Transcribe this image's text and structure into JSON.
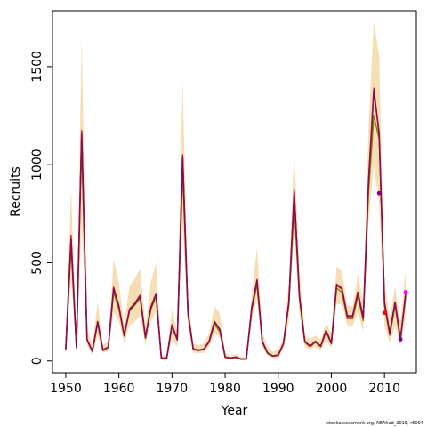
{
  "chart_data": {
    "type": "line",
    "title": "",
    "xlabel": "Year",
    "ylabel": "Recruits",
    "xlim": [
      1947.5,
      2016
    ],
    "ylim": [
      -60,
      1785
    ],
    "xticks": [
      1950,
      1960,
      1970,
      1980,
      1990,
      2000,
      2010
    ],
    "yticks": [
      0,
      500,
      1000,
      1500
    ],
    "credit": "stockassessment.org, NEAhad_2015, r5094",
    "colors": {
      "band": "#f5deb3",
      "line_dark": "#8b0a50",
      "line_red": "#dc143c",
      "line_olive": "#808000",
      "point_purple": "#800080",
      "point_red": "#ff0000",
      "point_magenta": "#ff00ff"
    },
    "x": [
      1950,
      1951,
      1952,
      1953,
      1954,
      1955,
      1956,
      1957,
      1958,
      1959,
      1960,
      1961,
      1962,
      1963,
      1964,
      1965,
      1966,
      1967,
      1968,
      1969,
      1970,
      1971,
      1972,
      1973,
      1974,
      1975,
      1976,
      1977,
      1978,
      1979,
      1980,
      1981,
      1982,
      1983,
      1984,
      1985,
      1986,
      1987,
      1988,
      1989,
      1990,
      1991,
      1992,
      1993,
      1994,
      1995,
      1996,
      1997,
      1998,
      1999,
      2000,
      2001,
      2002,
      2003,
      2004,
      2005,
      2006,
      2007,
      2008,
      2009,
      2010,
      2011,
      2012,
      2013,
      2014
    ],
    "band_upper": [
      100,
      880,
      120,
      1650,
      160,
      80,
      300,
      80,
      100,
      520,
      400,
      190,
      380,
      420,
      470,
      180,
      400,
      500,
      30,
      30,
      260,
      150,
      1430,
      320,
      90,
      80,
      90,
      140,
      280,
      240,
      40,
      25,
      35,
      20,
      20,
      330,
      580,
      150,
      70,
      45,
      55,
      120,
      400,
      1070,
      480,
      130,
      110,
      130,
      110,
      190,
      140,
      480,
      460,
      280,
      280,
      440,
      300,
      1200,
      1730,
      1550,
      400,
      220,
      380,
      200,
      460
    ],
    "band_lower": [
      40,
      420,
      40,
      700,
      80,
      30,
      130,
      40,
      50,
      250,
      200,
      90,
      180,
      200,
      230,
      80,
      200,
      250,
      5,
      5,
      110,
      70,
      700,
      180,
      40,
      40,
      40,
      70,
      140,
      120,
      10,
      5,
      10,
      5,
      5,
      200,
      320,
      70,
      25,
      15,
      15,
      60,
      200,
      680,
      240,
      70,
      60,
      70,
      55,
      100,
      65,
      290,
      290,
      180,
      180,
      250,
      150,
      700,
      1000,
      800,
      180,
      90,
      180,
      80,
      230
    ],
    "series": [
      {
        "values": [
          60,
          620,
          70,
          1160,
          110,
          50,
          200,
          55,
          70,
          370,
          280,
          130,
          260,
          290,
          330,
          120,
          270,
          340,
          15,
          15,
          180,
          110,
          1040,
          245,
          60,
          55,
          60,
          100,
          200,
          160,
          20,
          15,
          20,
          10,
          10,
          270,
          410,
          100,
          40,
          25,
          30,
          90,
          300,
          860,
          330,
          100,
          75,
          100,
          75,
          155,
          90,
          390,
          370,
          230,
          230,
          350,
          220,
          920,
          1380,
          1160,
          300,
          140,
          300,
          110,
          345
        ]
      },
      {
        "values": [
          60,
          640,
          70,
          1175,
          110,
          50,
          200,
          55,
          70,
          375,
          280,
          130,
          265,
          295,
          335,
          120,
          275,
          345,
          15,
          15,
          185,
          110,
          1050,
          250,
          60,
          55,
          60,
          100,
          195,
          160,
          20,
          15,
          20,
          10,
          10,
          265,
          415,
          100,
          40,
          25,
          30,
          90,
          300,
          870,
          335,
          100,
          75,
          100,
          75,
          155,
          90,
          385,
          365,
          225,
          225,
          345,
          215,
          910,
          1390,
          1150,
          300,
          140,
          300,
          110,
          350
        ]
      },
      {
        "values": [
          55,
          580,
          65,
          1100,
          105,
          48,
          190,
          52,
          68,
          350,
          265,
          125,
          255,
          285,
          320,
          115,
          260,
          330,
          14,
          14,
          175,
          105,
          960,
          235,
          58,
          52,
          58,
          95,
          185,
          150,
          18,
          14,
          18,
          9,
          9,
          255,
          390,
          95,
          38,
          24,
          28,
          85,
          285,
          800,
          320,
          95,
          72,
          95,
          72,
          148,
          86,
          370,
          350,
          215,
          215,
          330,
          205,
          860,
          1250,
          1130,
          280,
          130,
          280,
          105,
          330
        ]
      }
    ],
    "points": [
      {
        "x": 2009,
        "y": 855,
        "color": "#800080"
      },
      {
        "x": 2010,
        "y": 245,
        "color": "#ff0000"
      },
      {
        "x": 2013,
        "y": 110,
        "color": "#800080"
      },
      {
        "x": 2014,
        "y": 350,
        "color": "#ff00ff"
      }
    ]
  }
}
